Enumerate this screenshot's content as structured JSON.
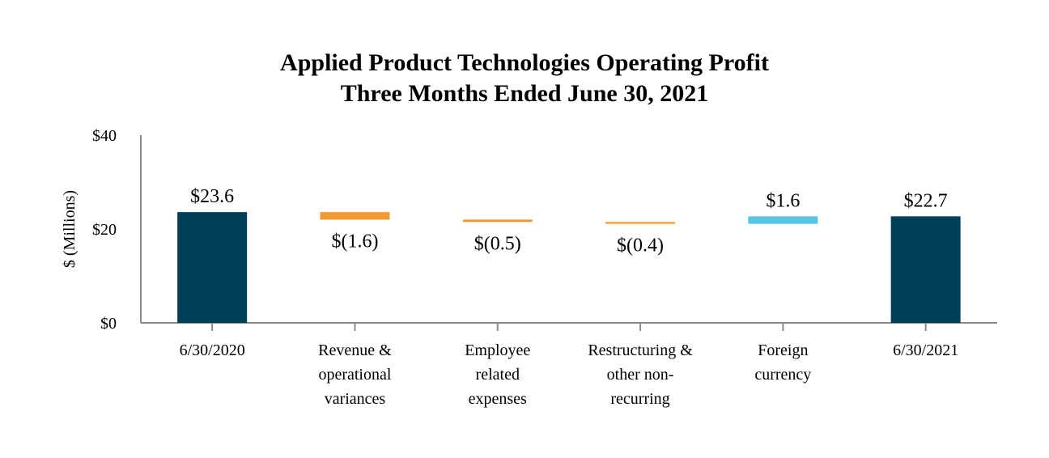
{
  "chart_data": {
    "type": "bar",
    "subtype": "waterfall",
    "title": "Applied Product Technologies Operating Profit",
    "subtitle": "Three Months Ended June 30, 2021",
    "ylabel": "$ (Millions)",
    "xlabel": "",
    "ylim": [
      0,
      40
    ],
    "yticks": [
      0,
      20,
      40
    ],
    "ytick_labels": [
      "$0",
      "$20",
      "$40"
    ],
    "categories": [
      [
        "6/30/2020"
      ],
      [
        "Revenue &",
        "operational",
        "variances"
      ],
      [
        "Employee",
        "related",
        "expenses"
      ],
      [
        "Restructuring &",
        "other non-",
        "recurring"
      ],
      [
        "Foreign",
        "currency"
      ],
      [
        "6/30/2021"
      ]
    ],
    "values": [
      23.6,
      -1.6,
      -0.5,
      -0.4,
      1.6,
      22.7
    ],
    "bar_kinds": [
      "total",
      "decrease",
      "decrease",
      "decrease",
      "increase",
      "total"
    ],
    "data_labels": [
      "$23.6",
      "$(1.6)",
      "$(0.5)",
      "$(0.4)",
      "$1.6",
      "$22.7"
    ],
    "colors": {
      "total": "#003f58",
      "decrease": "#f39a32",
      "increase": "#58c4e4"
    },
    "grid": false,
    "legend": "none"
  }
}
